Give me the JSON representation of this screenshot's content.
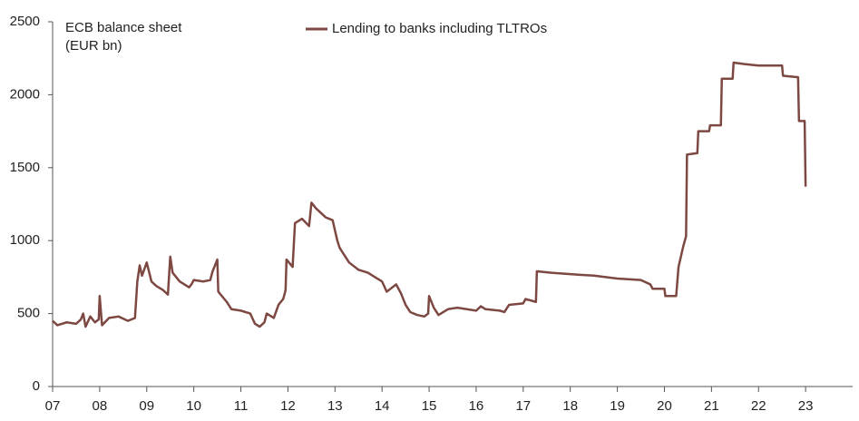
{
  "chart_data": {
    "type": "line",
    "title": "ECB balance sheet",
    "subtitle": "(EUR bn)",
    "x": [
      2007.0,
      2007.1,
      2007.3,
      2007.5,
      2007.6,
      2007.65,
      2007.7,
      2007.8,
      2007.9,
      2007.98,
      2008.0,
      2008.05,
      2008.2,
      2008.4,
      2008.6,
      2008.75,
      2008.8,
      2008.85,
      2008.9,
      2009.0,
      2009.1,
      2009.2,
      2009.35,
      2009.45,
      2009.5,
      2009.55,
      2009.7,
      2009.9,
      2009.95,
      2010.0,
      2010.2,
      2010.35,
      2010.4,
      2010.5,
      2010.52,
      2010.7,
      2010.8,
      2011.0,
      2011.2,
      2011.3,
      2011.4,
      2011.5,
      2011.55,
      2011.7,
      2011.8,
      2011.9,
      2011.95,
      2011.97,
      2012.1,
      2012.15,
      2012.3,
      2012.45,
      2012.5,
      2012.6,
      2012.8,
      2012.95,
      2013.05,
      2013.1,
      2013.3,
      2013.5,
      2013.7,
      2013.9,
      2014.0,
      2014.1,
      2014.3,
      2014.4,
      2014.5,
      2014.6,
      2014.75,
      2014.9,
      2014.98,
      2015.0,
      2015.1,
      2015.2,
      2015.4,
      2015.6,
      2015.8,
      2016.0,
      2016.1,
      2016.2,
      2016.5,
      2016.6,
      2016.7,
      2017.0,
      2017.05,
      2017.27,
      2017.29,
      2017.6,
      2018.0,
      2018.5,
      2019.0,
      2019.5,
      2019.7,
      2019.75,
      2020.0,
      2020.02,
      2020.25,
      2020.3,
      2020.4,
      2020.46,
      2020.48,
      2020.7,
      2020.72,
      2020.95,
      2020.97,
      2021.2,
      2021.22,
      2021.45,
      2021.47,
      2021.7,
      2022.0,
      2022.5,
      2022.52,
      2022.84,
      2022.86,
      2022.98,
      2023.0
    ],
    "series": [
      {
        "name": "Lending to banks including TLTROs",
        "color": "#7d4842",
        "values": [
          450,
          420,
          440,
          430,
          460,
          500,
          410,
          480,
          440,
          460,
          620,
          420,
          470,
          480,
          450,
          470,
          720,
          830,
          760,
          850,
          720,
          690,
          660,
          630,
          890,
          780,
          720,
          680,
          700,
          730,
          720,
          730,
          790,
          870,
          650,
          580,
          530,
          520,
          500,
          430,
          410,
          440,
          500,
          470,
          560,
          600,
          660,
          870,
          820,
          1120,
          1150,
          1100,
          1260,
          1220,
          1160,
          1140,
          1000,
          950,
          850,
          800,
          780,
          740,
          720,
          650,
          700,
          640,
          560,
          510,
          490,
          480,
          500,
          620,
          540,
          490,
          530,
          540,
          530,
          520,
          550,
          530,
          520,
          510,
          560,
          570,
          600,
          580,
          790,
          780,
          770,
          760,
          740,
          730,
          700,
          670,
          670,
          620,
          620,
          820,
          960,
          1030,
          1590,
          1600,
          1750,
          1750,
          1790,
          1790,
          2110,
          2110,
          2220,
          2210,
          2200,
          2200,
          2130,
          2120,
          1820,
          1820,
          1370
        ]
      }
    ],
    "xlim": [
      2007,
      2024
    ],
    "xticks": [
      {
        "value": 2007,
        "label": "07"
      },
      {
        "value": 2008,
        "label": "08"
      },
      {
        "value": 2009,
        "label": "09"
      },
      {
        "value": 2010,
        "label": "10"
      },
      {
        "value": 2011,
        "label": "11"
      },
      {
        "value": 2012,
        "label": "12"
      },
      {
        "value": 2013,
        "label": "13"
      },
      {
        "value": 2014,
        "label": "14"
      },
      {
        "value": 2015,
        "label": "15"
      },
      {
        "value": 2016,
        "label": "16"
      },
      {
        "value": 2017,
        "label": "17"
      },
      {
        "value": 2018,
        "label": "18"
      },
      {
        "value": 2019,
        "label": "19"
      },
      {
        "value": 2020,
        "label": "20"
      },
      {
        "value": 2021,
        "label": "21"
      },
      {
        "value": 2022,
        "label": "22"
      },
      {
        "value": 2023,
        "label": "23"
      }
    ],
    "ylim": [
      0,
      2500
    ],
    "yticks": [
      0,
      500,
      1000,
      1500,
      2000,
      2500
    ],
    "grid": false
  }
}
